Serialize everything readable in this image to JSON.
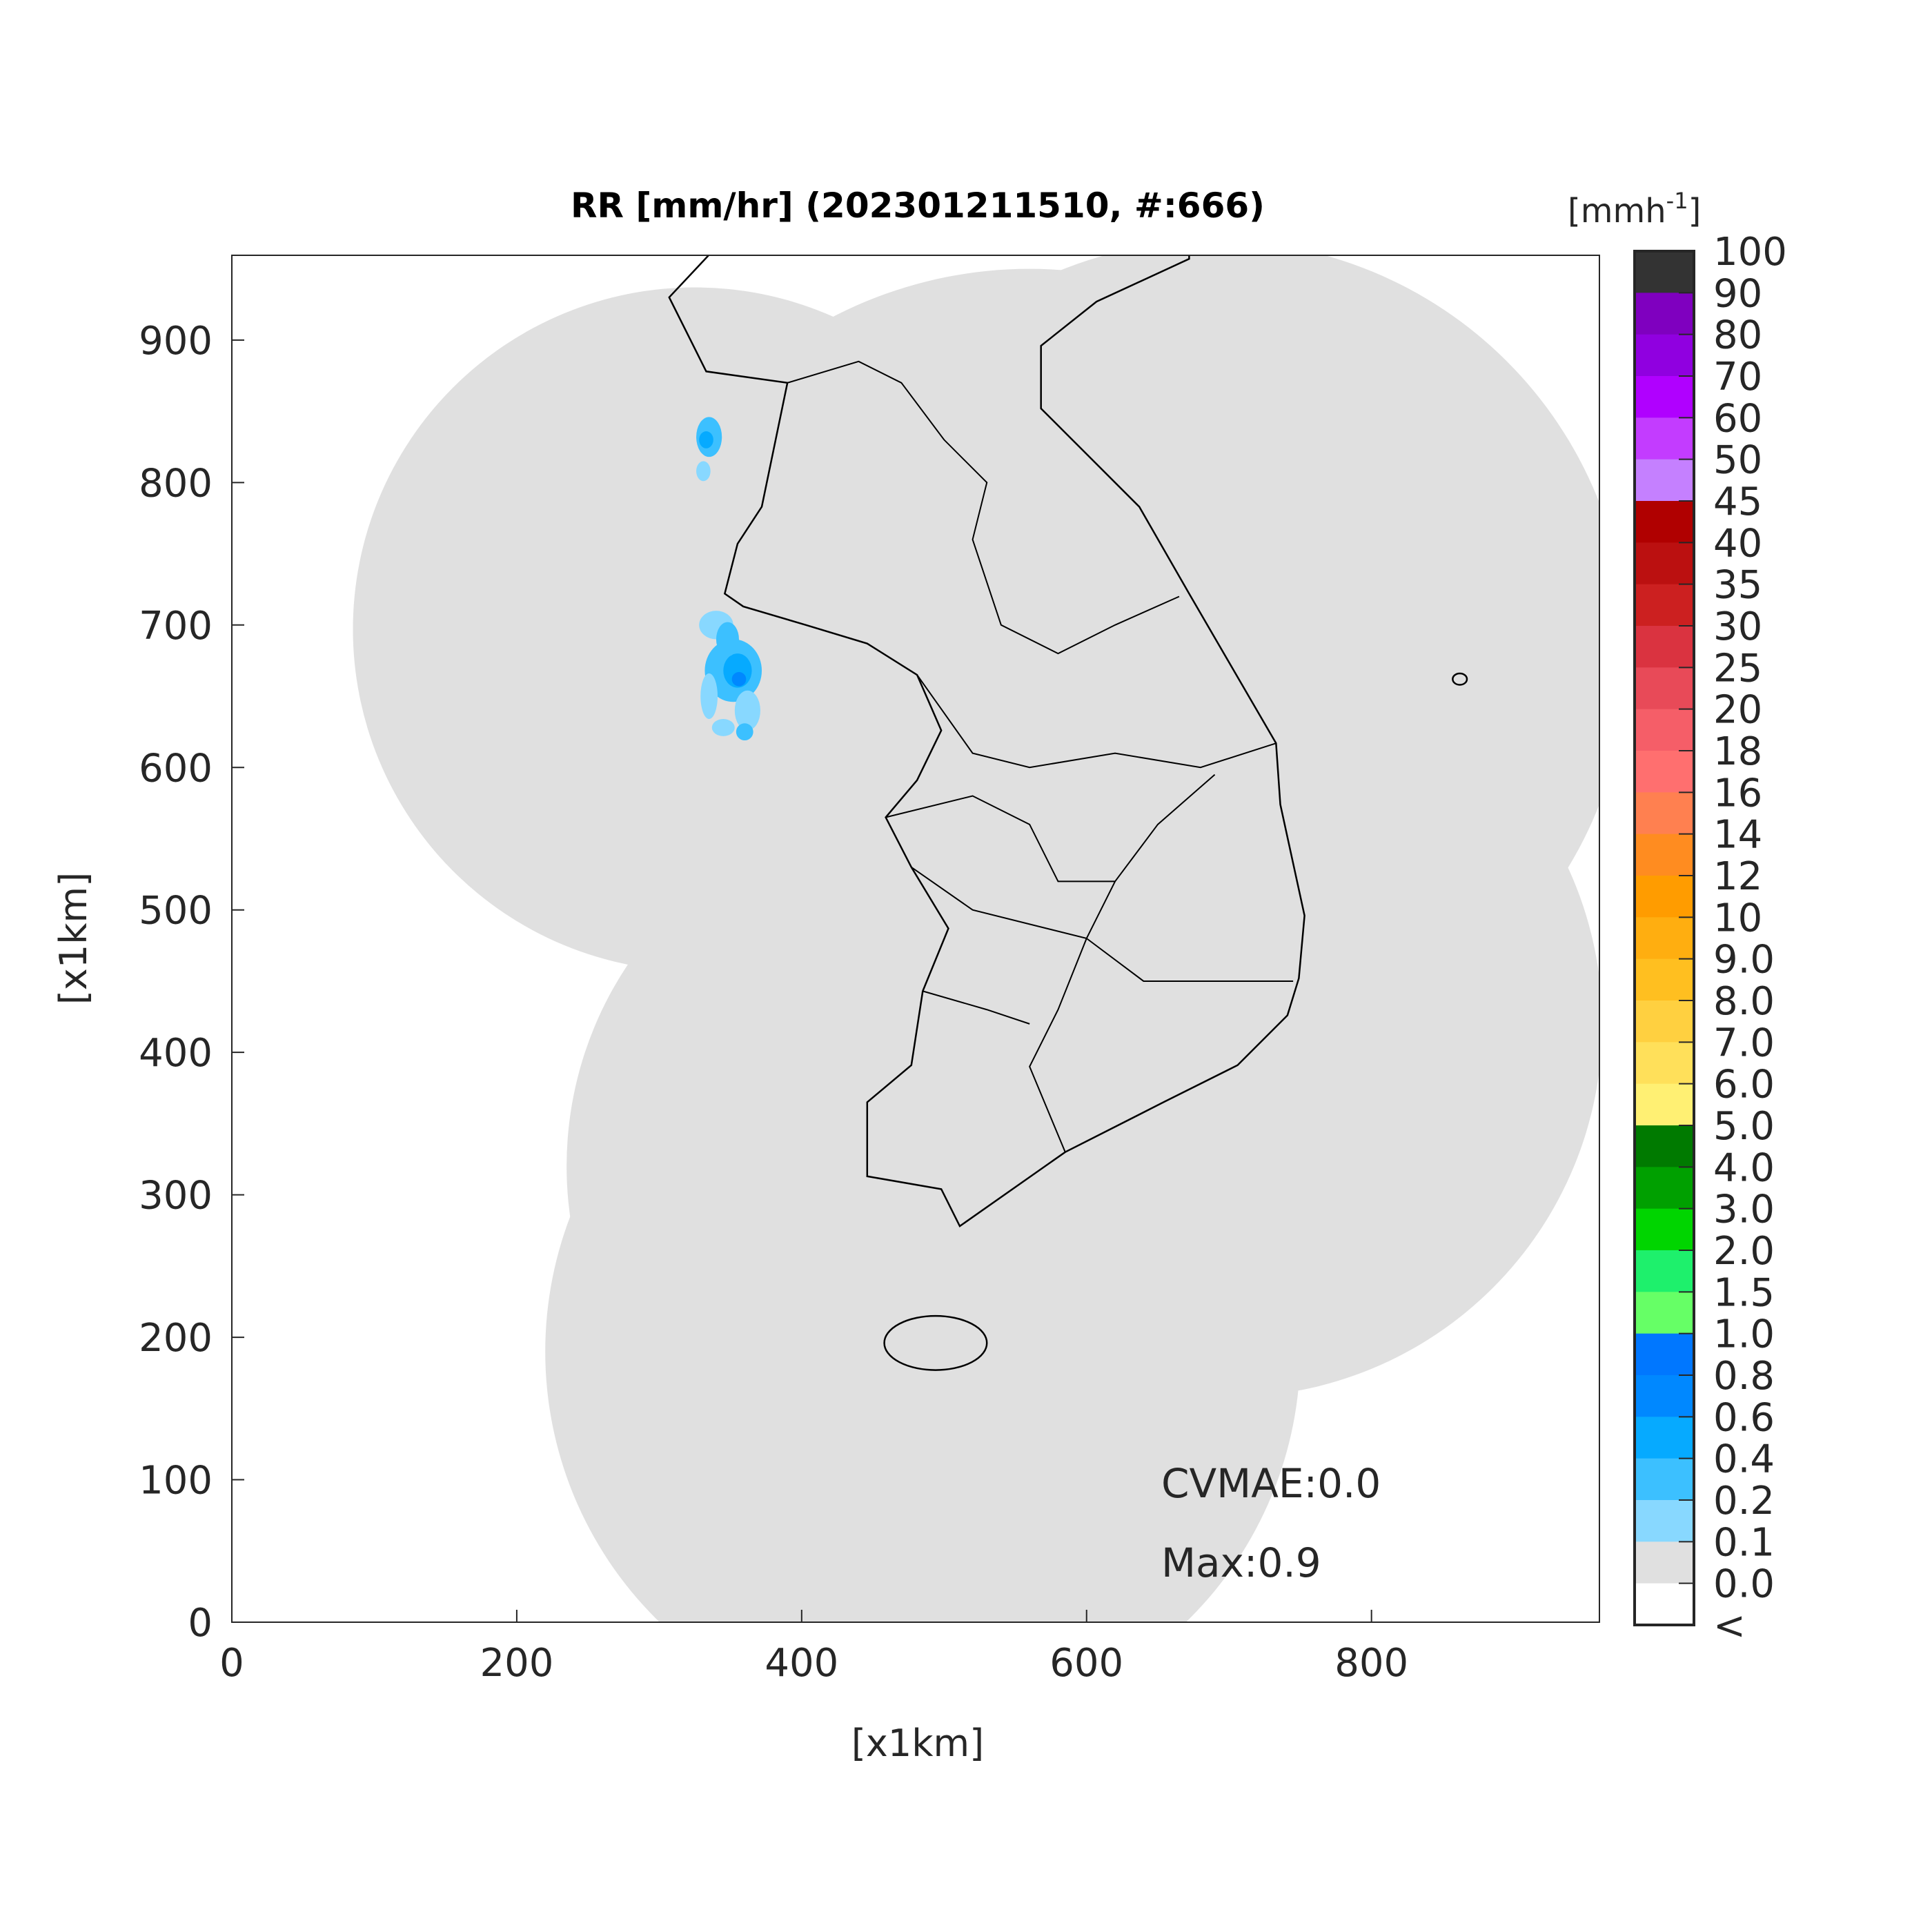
{
  "chart_data": {
    "type": "heatmap",
    "title": "RR [mm/hr] (202301211510, #:666)",
    "xlabel": "[x1km]",
    "ylabel": "[x1km]",
    "xlim": [
      0,
      960
    ],
    "ylim": [
      0,
      960
    ],
    "xticks": [
      "0",
      "200",
      "400",
      "600",
      "800"
    ],
    "xtick_values": [
      0,
      200,
      400,
      600,
      800
    ],
    "yticks": [
      "0",
      "100",
      "200",
      "300",
      "400",
      "500",
      "600",
      "700",
      "800",
      "900"
    ],
    "ytick_values": [
      0,
      100,
      200,
      300,
      400,
      500,
      600,
      700,
      800,
      900
    ],
    "grid": false,
    "annotations": [
      "CVMAE:0.0",
      "Max:0.9"
    ],
    "colorbar": {
      "unit_label": "[mmh",
      "unit_superscript": "-1",
      "unit_close": "]",
      "labels": [
        "100",
        "90",
        "80",
        "70",
        "60",
        "50",
        "45",
        "40",
        "35",
        "30",
        "25",
        "20",
        "18",
        "16",
        "14",
        "12",
        "10",
        "9.0",
        "8.0",
        "7.0",
        "6.0",
        "5.0",
        "4.0",
        "3.0",
        "2.0",
        "1.5",
        "1.0",
        "0.8",
        "0.6",
        "0.4",
        "0.2",
        "0.1",
        "0.0",
        "<"
      ],
      "colors": [
        "#333333",
        "#7f00bf",
        "#9000e0",
        "#b000ff",
        "#c33cff",
        "#c580ff",
        "#b00000",
        "#bb1010",
        "#cc2020",
        "#da3340",
        "#e84a58",
        "#f55e68",
        "#ff6f6f",
        "#ff8050",
        "#ff8c20",
        "#ff9c00",
        "#ffae10",
        "#ffbf20",
        "#ffd040",
        "#ffe05a",
        "#fff073",
        "#007a00",
        "#00a000",
        "#00d500",
        "#1ef06c",
        "#66ff66",
        "#0077ff",
        "#0088ff",
        "#06aaff",
        "#3cc0ff",
        "#88d8ff",
        "#e0e0e0",
        "#ffffff"
      ]
    },
    "coverage_color": "#e0e0e0",
    "rain_max": 0.9
  }
}
